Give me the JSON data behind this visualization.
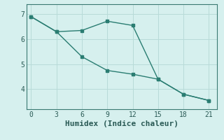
{
  "line1_x": [
    0,
    3,
    6,
    9,
    12,
    15,
    18,
    21
  ],
  "line1_y": [
    6.9,
    6.3,
    6.35,
    6.72,
    6.55,
    4.4,
    3.8,
    3.55
  ],
  "line2_x": [
    0,
    3,
    6,
    9,
    12,
    15,
    18,
    21
  ],
  "line2_y": [
    6.9,
    6.3,
    5.3,
    4.75,
    4.6,
    4.4,
    3.8,
    3.55
  ],
  "line_color": "#2a7d72",
  "bg_color": "#d6f0ee",
  "grid_color": "#b8dbd8",
  "xlabel": "Humidex (Indice chaleur)",
  "xlabel_fontsize": 8,
  "xticks": [
    0,
    3,
    6,
    9,
    12,
    15,
    18,
    21
  ],
  "yticks": [
    4,
    5,
    6,
    7
  ],
  "ylim": [
    3.2,
    7.4
  ],
  "xlim": [
    -0.5,
    22.0
  ]
}
